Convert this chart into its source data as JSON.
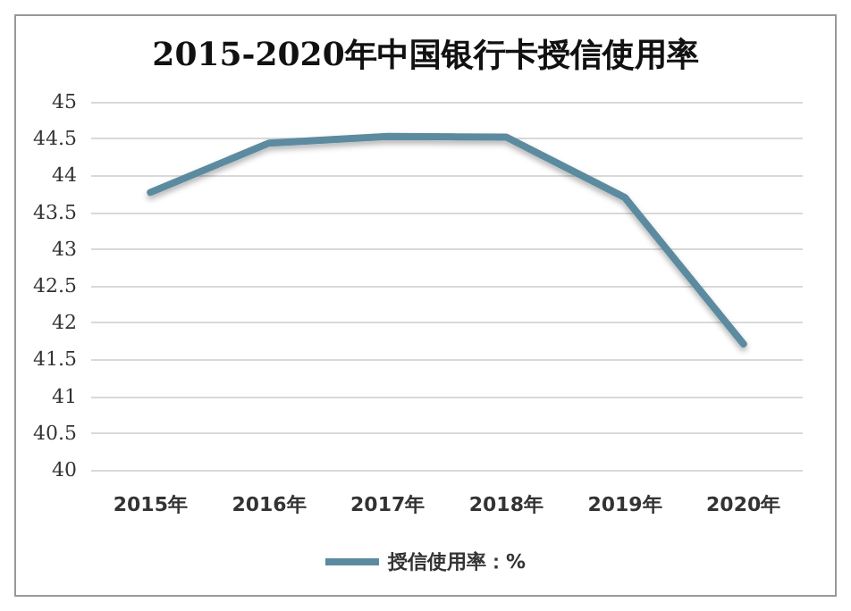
{
  "chart_data": {
    "type": "line",
    "title": "2015-2020年中国银行卡授信使用率",
    "categories": [
      "2015年",
      "2016年",
      "2017年",
      "2018年",
      "2019年",
      "2020年"
    ],
    "series": [
      {
        "name": "授信使用率：%",
        "color": "#5b8ba0",
        "values": [
          43.77,
          44.44,
          44.53,
          44.52,
          43.7,
          41.71
        ]
      }
    ],
    "ylim": [
      40,
      45
    ],
    "yticks": [
      40,
      40.5,
      41,
      41.5,
      42,
      42.5,
      43,
      43.5,
      44,
      44.5,
      45
    ],
    "grid": "y",
    "legend": "bottom",
    "marker": "none",
    "line_style": "solid"
  }
}
